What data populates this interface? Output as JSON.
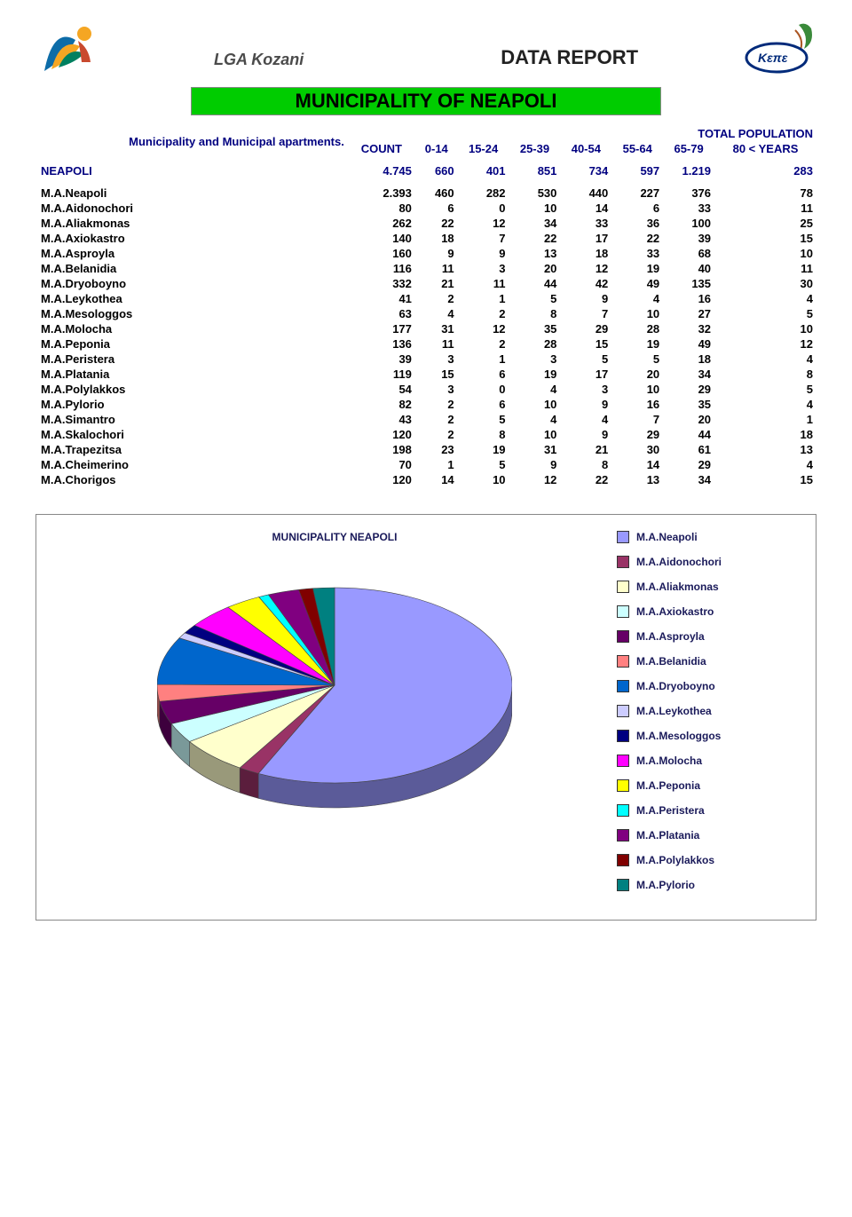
{
  "header": {
    "org": "LGA Kozani",
    "report": "DATA REPORT",
    "banner": "MUNICIPALITY OF NEAPOLI"
  },
  "table": {
    "row_label": "Municipality and Municipal apartments.",
    "super_head": "TOTAL POPULATION",
    "columns": [
      "COUNT",
      "0-14",
      "15-24",
      "25-39",
      "40-54",
      "55-64",
      "65-79",
      "80 < YEARS"
    ],
    "summary": {
      "name": "NEAPOLI",
      "values": [
        "4.745",
        "660",
        "401",
        "851",
        "734",
        "597",
        "1.219",
        "283"
      ]
    },
    "rows": [
      {
        "name": "M.A.Neapoli",
        "values": [
          "2.393",
          "460",
          "282",
          "530",
          "440",
          "227",
          "376",
          "78"
        ]
      },
      {
        "name": "M.A.Aidonochori",
        "values": [
          "80",
          "6",
          "0",
          "10",
          "14",
          "6",
          "33",
          "11"
        ]
      },
      {
        "name": "M.A.Aliakmonas",
        "values": [
          "262",
          "22",
          "12",
          "34",
          "33",
          "36",
          "100",
          "25"
        ]
      },
      {
        "name": "M.A.Axiokastro",
        "values": [
          "140",
          "18",
          "7",
          "22",
          "17",
          "22",
          "39",
          "15"
        ]
      },
      {
        "name": "M.A.Asproyla",
        "values": [
          "160",
          "9",
          "9",
          "13",
          "18",
          "33",
          "68",
          "10"
        ]
      },
      {
        "name": "M.A.Belanidia",
        "values": [
          "116",
          "11",
          "3",
          "20",
          "12",
          "19",
          "40",
          "11"
        ]
      },
      {
        "name": "M.A.Dryoboyno",
        "values": [
          "332",
          "21",
          "11",
          "44",
          "42",
          "49",
          "135",
          "30"
        ]
      },
      {
        "name": "M.A.Leykothea",
        "values": [
          "41",
          "2",
          "1",
          "5",
          "9",
          "4",
          "16",
          "4"
        ]
      },
      {
        "name": "M.A.Mesologgos",
        "values": [
          "63",
          "4",
          "2",
          "8",
          "7",
          "10",
          "27",
          "5"
        ]
      },
      {
        "name": "M.A.Molocha",
        "values": [
          "177",
          "31",
          "12",
          "35",
          "29",
          "28",
          "32",
          "10"
        ]
      },
      {
        "name": "M.A.Peponia",
        "values": [
          "136",
          "11",
          "2",
          "28",
          "15",
          "19",
          "49",
          "12"
        ]
      },
      {
        "name": "M.A.Peristera",
        "values": [
          "39",
          "3",
          "1",
          "3",
          "5",
          "5",
          "18",
          "4"
        ]
      },
      {
        "name": "M.A.Platania",
        "values": [
          "119",
          "15",
          "6",
          "19",
          "17",
          "20",
          "34",
          "8"
        ]
      },
      {
        "name": "M.A.Polylakkos",
        "values": [
          "54",
          "3",
          "0",
          "4",
          "3",
          "10",
          "29",
          "5"
        ]
      },
      {
        "name": "M.A.Pylorio",
        "values": [
          "82",
          "2",
          "6",
          "10",
          "9",
          "16",
          "35",
          "4"
        ]
      },
      {
        "name": "M.A.Simantro",
        "values": [
          "43",
          "2",
          "5",
          "4",
          "4",
          "7",
          "20",
          "1"
        ]
      },
      {
        "name": "M.A.Skalochori",
        "values": [
          "120",
          "2",
          "8",
          "10",
          "9",
          "29",
          "44",
          "18"
        ]
      },
      {
        "name": "M.A.Trapezitsa",
        "values": [
          "198",
          "23",
          "19",
          "31",
          "21",
          "30",
          "61",
          "13"
        ]
      },
      {
        "name": "M.A.Cheimerino",
        "values": [
          "70",
          "1",
          "5",
          "9",
          "8",
          "14",
          "29",
          "4"
        ]
      },
      {
        "name": "M.A.Chorigos",
        "values": [
          "120",
          "14",
          "10",
          "12",
          "22",
          "13",
          "34",
          "15"
        ]
      }
    ]
  },
  "chart": {
    "title": "MUNICIPALITY NEAPOLI",
    "type": "pie-3d",
    "background_color": "#ffffff",
    "border_color": "#888888",
    "title_fontsize": 12,
    "legend_fontsize": 12,
    "legend_color": "#1a1a5a",
    "pie_width": 400,
    "pie_height": 220,
    "tilt": 0.55,
    "depth": 28,
    "slices": [
      {
        "label": "M.A.Neapoli",
        "value": 2393,
        "color": "#9999ff"
      },
      {
        "label": "M.A.Aidonochori",
        "value": 80,
        "color": "#993366"
      },
      {
        "label": "M.A.Aliakmonas",
        "value": 262,
        "color": "#ffffcc"
      },
      {
        "label": "M.A.Axiokastro",
        "value": 140,
        "color": "#ccffff"
      },
      {
        "label": "M.A.Asproyla",
        "value": 160,
        "color": "#660066"
      },
      {
        "label": "M.A.Belanidia",
        "value": 116,
        "color": "#ff8080"
      },
      {
        "label": "M.A.Dryoboyno",
        "value": 332,
        "color": "#0066cc"
      },
      {
        "label": "M.A.Leykothea",
        "value": 41,
        "color": "#ccccff"
      },
      {
        "label": "M.A.Mesologgos",
        "value": 63,
        "color": "#000080"
      },
      {
        "label": "M.A.Molocha",
        "value": 177,
        "color": "#ff00ff"
      },
      {
        "label": "M.A.Peponia",
        "value": 136,
        "color": "#ffff00"
      },
      {
        "label": "M.A.Peristera",
        "value": 39,
        "color": "#00ffff"
      },
      {
        "label": "M.A.Platania",
        "value": 119,
        "color": "#800080"
      },
      {
        "label": "M.A.Polylakkos",
        "value": 54,
        "color": "#800000"
      },
      {
        "label": "M.A.Pylorio",
        "value": 82,
        "color": "#008080"
      }
    ]
  }
}
